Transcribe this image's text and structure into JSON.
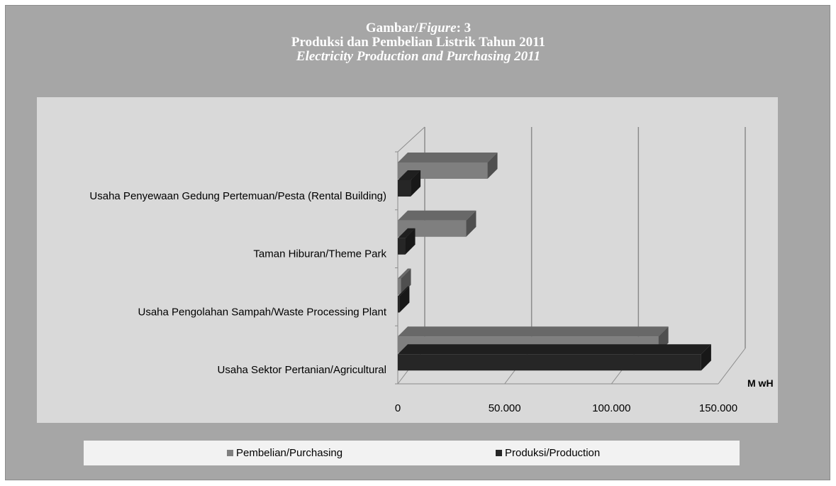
{
  "title": {
    "line1_prefix": "Gambar/",
    "line1_italic": "Figure",
    "line1_suffix": ": 3",
    "line2": "Produksi dan Pembelian Listrik Tahun 2011",
    "line3": "Electricity Production and Purchasing 2011"
  },
  "chart_data": {
    "type": "bar",
    "orientation": "horizontal",
    "style": "3d-clustered",
    "categories": [
      "Usaha Penyewaan Gedung Pertemuan/Pesta (Rental Building)",
      "Taman Hiburan/Theme Park",
      "Usaha Pengolahan Sampah/Waste Processing Plant",
      "Usaha Sektor Pertanian/Agricultural"
    ],
    "series": [
      {
        "name": "Pembelian/Purchasing",
        "color": "#7f7f7f",
        "values": [
          42000,
          32000,
          1500,
          122000
        ]
      },
      {
        "name": "Produksi/Production",
        "color": "#262626",
        "values": [
          6000,
          3500,
          800,
          142000
        ]
      }
    ],
    "xlim": [
      0,
      150000
    ],
    "xticks": [
      "0",
      "50.000",
      "100.000",
      "150.000"
    ],
    "xtick_values": [
      0,
      50000,
      100000,
      150000
    ],
    "unit_label": "M wH",
    "grid": true,
    "legend_position": "bottom"
  }
}
